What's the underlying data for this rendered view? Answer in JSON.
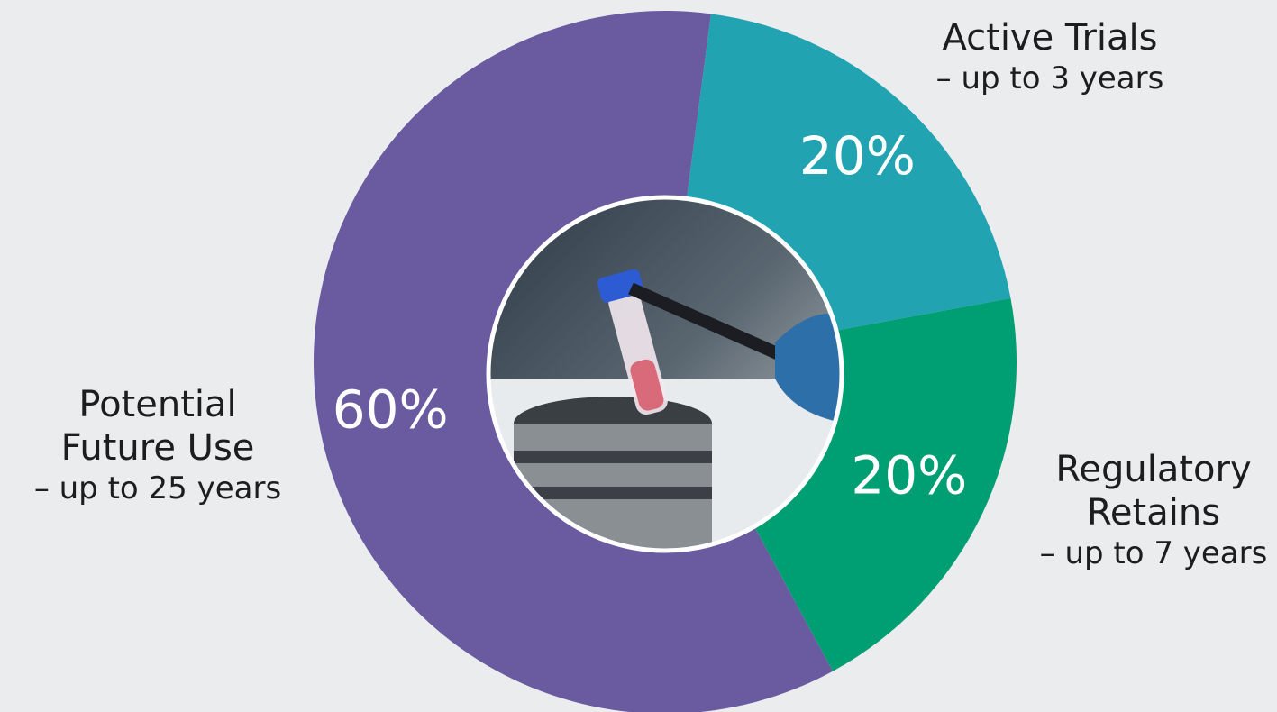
{
  "chart_data": {
    "type": "pie",
    "categories": [
      "Active Trials",
      "Regulatory Retains",
      "Potential Future Use"
    ],
    "sublabels": [
      "– up to 3 years",
      "– up to 7 years",
      "– up to 25 years"
    ],
    "values": [
      20,
      20,
      60
    ],
    "value_labels": [
      "20%",
      "20%",
      "60%"
    ],
    "colors": [
      "#21a3b1",
      "#009e73",
      "#6a5aa0"
    ]
  }
}
